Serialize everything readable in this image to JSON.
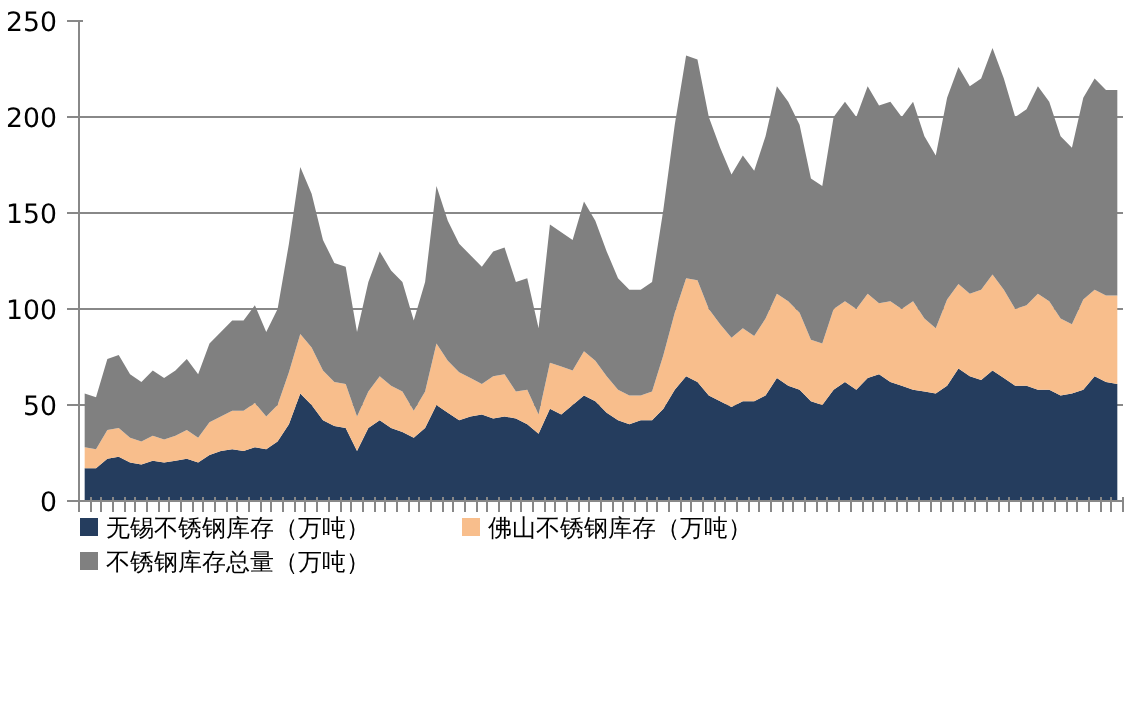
{
  "chart_data": {
    "type": "area",
    "stacked": true,
    "categories": [
      null,
      null,
      null,
      null,
      null,
      null,
      null,
      null,
      null,
      null,
      null,
      null,
      null,
      null,
      null,
      null,
      null,
      null,
      null,
      null,
      null,
      null,
      null,
      null,
      null,
      null,
      null,
      null,
      null,
      null,
      null,
      null,
      null,
      null,
      null,
      null,
      null,
      null,
      null,
      null,
      null,
      null,
      null,
      null,
      null,
      null,
      null,
      null,
      null,
      null,
      null,
      null,
      null,
      null,
      null,
      null,
      null,
      null,
      null,
      null,
      null,
      null,
      null,
      null,
      null,
      null,
      null,
      null,
      null,
      null,
      null,
      null,
      null,
      null,
      null,
      null,
      null,
      null,
      null,
      null,
      null,
      null,
      null,
      null,
      null,
      null,
      null,
      null,
      null,
      null,
      null,
      null
    ],
    "series": [
      {
        "name": "无锡不锈钢库存（万吨）",
        "color": "#253d5e",
        "values": [
          17,
          17,
          22,
          23,
          20,
          19,
          21,
          20,
          21,
          22,
          20,
          24,
          26,
          27,
          26,
          28,
          27,
          31,
          40,
          56,
          50,
          42,
          39,
          38,
          26,
          38,
          42,
          38,
          36,
          33,
          38,
          50,
          46,
          42,
          44,
          45,
          43,
          44,
          43,
          40,
          35,
          48,
          45,
          50,
          55,
          52,
          46,
          42,
          40,
          42,
          42,
          48,
          58,
          65,
          62,
          55,
          52,
          49,
          52,
          52,
          55,
          64,
          60,
          58,
          52,
          50,
          58,
          62,
          58,
          64,
          66,
          62,
          60,
          58,
          57,
          56,
          60,
          69,
          65,
          63,
          68,
          64,
          60,
          60,
          58,
          58,
          55,
          56,
          58,
          65,
          62,
          61
        ]
      },
      {
        "name": "佛山不锈钢库存（万吨）",
        "color": "#f8be8c",
        "values": [
          11,
          10,
          15,
          15,
          13,
          12,
          13,
          12,
          13,
          15,
          13,
          17,
          18,
          20,
          21,
          23,
          17,
          19,
          27,
          31,
          30,
          26,
          23,
          23,
          18,
          19,
          23,
          22,
          21,
          14,
          19,
          32,
          27,
          25,
          20,
          16,
          22,
          22,
          14,
          18,
          10,
          24,
          25,
          18,
          23,
          21,
          19,
          16,
          15,
          13,
          15,
          28,
          40,
          51,
          53,
          45,
          40,
          36,
          38,
          34,
          40,
          44,
          44,
          40,
          32,
          32,
          42,
          42,
          42,
          44,
          37,
          42,
          40,
          46,
          38,
          34,
          45,
          44,
          43,
          47,
          50,
          46,
          40,
          42,
          50,
          46,
          40,
          36,
          47,
          45,
          45,
          46
        ]
      },
      {
        "name": "不锈钢库存总量（万吨）",
        "color": "#808080",
        "values": [
          28,
          27,
          37,
          38,
          33,
          31,
          34,
          32,
          34,
          37,
          33,
          41,
          44,
          47,
          47,
          51,
          44,
          50,
          67,
          87,
          80,
          68,
          62,
          61,
          44,
          57,
          65,
          60,
          57,
          47,
          57,
          82,
          73,
          67,
          64,
          61,
          65,
          66,
          57,
          58,
          45,
          72,
          70,
          68,
          78,
          73,
          65,
          58,
          55,
          55,
          57,
          76,
          98,
          116,
          115,
          100,
          92,
          85,
          90,
          86,
          95,
          108,
          104,
          98,
          84,
          82,
          100,
          104,
          100,
          108,
          103,
          104,
          100,
          104,
          95,
          90,
          105,
          113,
          108,
          110,
          118,
          110,
          100,
          102,
          108,
          104,
          95,
          92,
          105,
          110,
          107,
          107
        ]
      }
    ],
    "ylim": [
      0,
      250
    ],
    "yticks": [
      0,
      50,
      100,
      150,
      200,
      250
    ],
    "grid": "y",
    "legend": "bottom",
    "tick_labels": "y"
  }
}
